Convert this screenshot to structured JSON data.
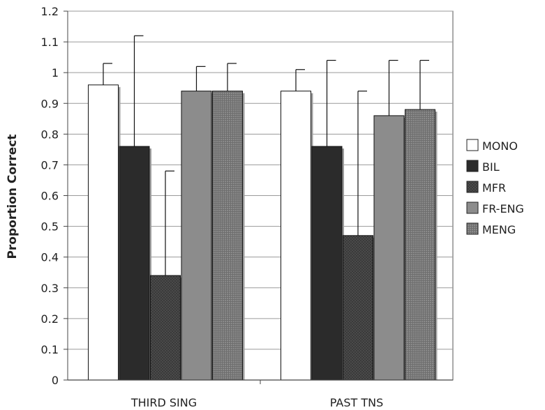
{
  "chart_data": {
    "type": "bar",
    "title": "",
    "xlabel": "",
    "ylabel": "Proportion Correct",
    "ylim": [
      0,
      1.2
    ],
    "yticks": [
      "0",
      "0.1",
      "0.2",
      "0.3",
      "0.4",
      "0.5",
      "0.6",
      "0.7",
      "0.8",
      "0.9",
      "1",
      "1.1",
      "1.2"
    ],
    "categories": [
      "THIRD SING",
      "PAST TNS"
    ],
    "grid": true,
    "legend": "right",
    "error_bars": "upper",
    "series": [
      {
        "name": "MONO",
        "values": [
          0.96,
          0.94
        ],
        "error": [
          0.07,
          0.07
        ],
        "color": "#ffffff",
        "pattern": "none"
      },
      {
        "name": "BIL",
        "values": [
          0.76,
          0.76
        ],
        "error": [
          0.36,
          0.28
        ],
        "color": "#2b2b2b",
        "pattern": "none"
      },
      {
        "name": "MFR",
        "values": [
          0.34,
          0.47
        ],
        "error": [
          0.34,
          0.47
        ],
        "color": "#4a4a4a",
        "pattern": "checker"
      },
      {
        "name": "FR-ENG",
        "values": [
          0.94,
          0.86
        ],
        "error": [
          0.08,
          0.18
        ],
        "color": "#8c8c8c",
        "pattern": "none"
      },
      {
        "name": "MENG",
        "values": [
          0.94,
          0.88
        ],
        "error": [
          0.09,
          0.16
        ],
        "color": "#7a7a7a",
        "pattern": "grid"
      }
    ]
  }
}
